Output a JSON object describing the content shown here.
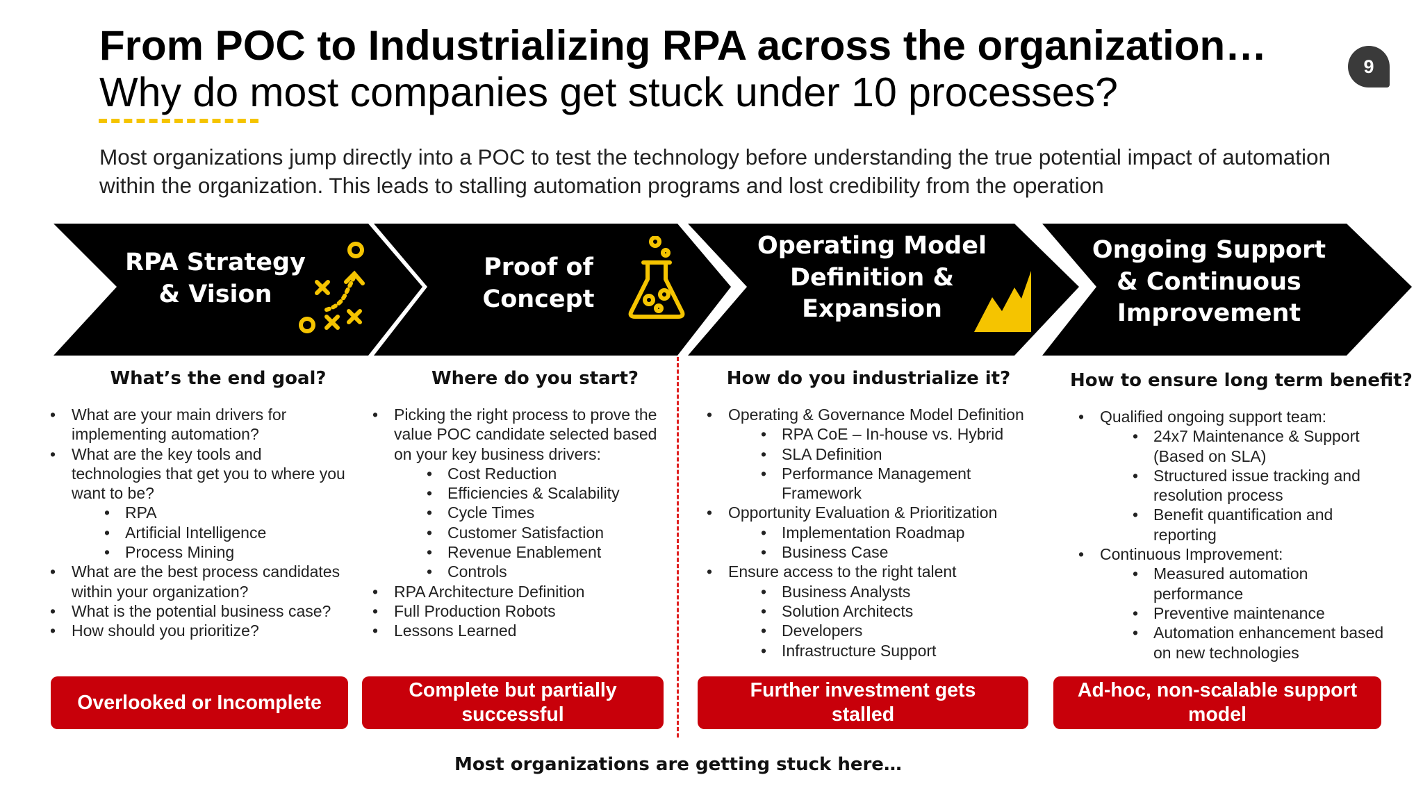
{
  "header": {
    "title": "From POC to Industrializing RPA across the organization…",
    "subtitle": "Why do most companies get stuck under 10 processes?",
    "page_number": "9"
  },
  "intro": "Most organizations jump directly into a POC to test the technology before understanding the true potential impact of automation within the organization. This leads to stalling automation programs and lost credibility from the operation",
  "colors": {
    "chevron": "#000000",
    "icon_accent": "#f5c400",
    "box": "#c8000a",
    "divider": "#e02020"
  },
  "stages": [
    {
      "label_lines": [
        "RPA Strategy",
        "& Vision"
      ],
      "icon": "strategy-play-icon"
    },
    {
      "label_lines": [
        "Proof of",
        "Concept"
      ],
      "icon": "flask-icon"
    },
    {
      "label_lines": [
        "Operating Model",
        "Definition &",
        "Expansion"
      ],
      "icon": "growth-chart-icon"
    },
    {
      "label_lines": [
        "Ongoing Support",
        "& Continuous",
        "Improvement"
      ],
      "icon": ""
    }
  ],
  "columns": [
    {
      "question": "What’s the end goal?",
      "items": [
        {
          "text": "What are your main drivers for implementing automation?"
        },
        {
          "text": "What are the key tools and technologies that get you to where you want to be?",
          "sub": [
            "RPA",
            "Artificial Intelligence",
            "Process Mining"
          ]
        },
        {
          "text": "What are the best process candidates within your organization?"
        },
        {
          "text": "What is the potential business case?"
        },
        {
          "text": "How should you prioritize?"
        }
      ],
      "outcome": "Overlooked or Incomplete"
    },
    {
      "question": "Where do you start?",
      "items": [
        {
          "text": "Picking the right process to prove the value POC candidate selected based on your key business drivers:",
          "sub": [
            "Cost Reduction",
            "Efficiencies & Scalability",
            "Cycle Times",
            "Customer Satisfaction",
            "Revenue Enablement",
            "Controls"
          ]
        },
        {
          "text": "RPA Architecture Definition"
        },
        {
          "text": "Full Production Robots"
        },
        {
          "text": "Lessons Learned"
        }
      ],
      "outcome": "Complete but partially successful"
    },
    {
      "question": "How do you industrialize it?",
      "items": [
        {
          "text": "Operating & Governance Model Definition",
          "sub": [
            "RPA CoE – In-house vs. Hybrid",
            "SLA Definition",
            "Performance Management Framework"
          ]
        },
        {
          "text": "Opportunity Evaluation & Prioritization",
          "sub": [
            "Implementation Roadmap",
            "Business Case"
          ]
        },
        {
          "text": "Ensure access to the right talent",
          "sub": [
            "Business Analysts",
            "Solution Architects",
            "Developers",
            "Infrastructure Support"
          ]
        }
      ],
      "outcome": "Further investment gets stalled"
    },
    {
      "question": "How to ensure long term benefit?",
      "items": [
        {
          "text": "Qualified ongoing support team:",
          "sub": [
            "24x7 Maintenance & Support (Based on SLA)",
            "Structured issue tracking and resolution process",
            "Benefit quantification and reporting"
          ]
        },
        {
          "text": "Continuous Improvement:",
          "sub": [
            "Measured automation performance",
            "Preventive maintenance",
            "Automation enhancement based on new technologies"
          ]
        }
      ],
      "outcome": "Ad-hoc, non-scalable support model"
    }
  ],
  "footer_note": "Most organizations are getting stuck here…"
}
